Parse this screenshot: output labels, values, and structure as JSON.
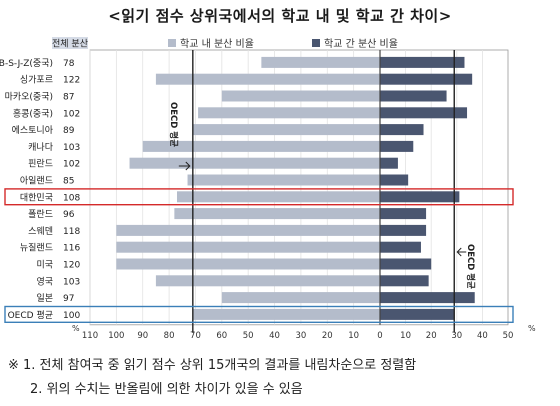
{
  "chart_data": {
    "type": "bar",
    "title": "<읽기 점수 상위국에서의 학교 내 및 학교 간 차이>",
    "score_column_header": "전체 분산",
    "categories": [
      "B-S-J-Z(중국)",
      "싱가포르",
      "마카오(중국)",
      "홍콩(중국)",
      "에스토니아",
      "캐나다",
      "핀란드",
      "아일랜드",
      "대한민국",
      "폴란드",
      "스웨덴",
      "뉴질랜드",
      "미국",
      "영국",
      "일본",
      "OECD 평균"
    ],
    "total_variance": [
      78,
      122,
      87,
      102,
      89,
      103,
      102,
      85,
      108,
      96,
      118,
      116,
      120,
      103,
      97,
      100
    ],
    "series": [
      {
        "name": "학교 내 분산 비율",
        "color": "#b4bccb",
        "direction": "left",
        "values": [
          45,
          85,
          60,
          69,
          71,
          90,
          95,
          73,
          77,
          78,
          100,
          100,
          100,
          85,
          60,
          71
        ]
      },
      {
        "name": "학교 간 분산 비율",
        "color": "#4a5670",
        "direction": "right",
        "values": [
          33,
          36,
          26,
          34,
          17,
          13,
          7,
          11,
          31,
          18,
          18,
          16,
          20,
          19,
          37,
          29
        ]
      }
    ],
    "reference_lines": [
      {
        "label": "OECD 평균",
        "side": "within",
        "value": 71
      },
      {
        "label": "OECD 평균",
        "side": "between",
        "value": 29
      }
    ],
    "highlighted_categories": [
      "대한민국",
      "OECD 평균"
    ],
    "x_tick_labels": [
      "110",
      "100",
      "90",
      "80",
      "70",
      "60",
      "50",
      "40",
      "30",
      "20",
      "10",
      "0",
      "10",
      "20",
      "30",
      "40",
      "50"
    ],
    "x_unit": "%",
    "xlim_within": [
      0,
      110
    ],
    "xlim_between": [
      0,
      50
    ],
    "grid": true,
    "legend_position": "top",
    "notes": [
      "※ 1. 전체 참여국 중 읽기 점수 상위 15개국의 결과를 내림차순으로 정렬함",
      "2. 위의 수치는 반올림에 의한 차이가 있을 수 있음"
    ]
  }
}
